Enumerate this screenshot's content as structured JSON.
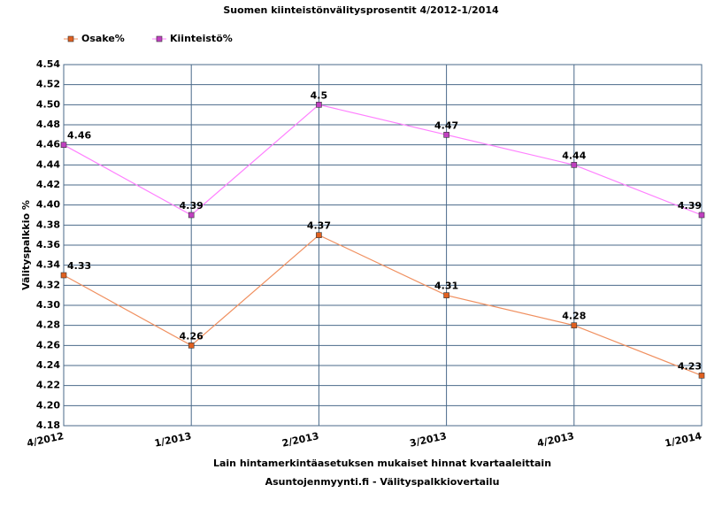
{
  "chart_data": {
    "type": "line",
    "title": "Suomen kiinteistönvälitysprosentit 4/2012-1/2014",
    "xlabel": "Lain hintamerkintäasetuksen mukaiset hinnat kvartaaleittain",
    "source": "Asuntojenmyynti.fi  -  Välityspalkkiovertailu",
    "ylabel": "Välityspalkkio %",
    "categories": [
      "4/2012",
      "1/2013",
      "2/2013",
      "3/2013",
      "4/2013",
      "1/2014"
    ],
    "series": [
      {
        "name": "Osake%",
        "color": "#f09060",
        "marker_color": "#e06020",
        "values": [
          4.33,
          4.26,
          4.37,
          4.31,
          4.28,
          4.23
        ]
      },
      {
        "name": "Kiinteistö%",
        "color": "#ff80ff",
        "marker_color": "#c040c0",
        "values": [
          4.46,
          4.39,
          4.5,
          4.47,
          4.44,
          4.39
        ]
      }
    ],
    "ylim": [
      4.18,
      4.54
    ],
    "yticks": [
      4.18,
      {
        "value": 4.2,
        "label": "4.20"
      },
      4.22,
      4.24,
      4.26,
      4.28,
      {
        "value": 4.3,
        "label": "4.30"
      },
      4.32,
      4.34,
      4.36,
      4.38,
      {
        "value": 4.4,
        "label": "4.40"
      },
      4.42,
      4.44,
      4.46,
      4.48,
      {
        "value": 4.5,
        "label": "4.50"
      },
      4.52,
      4.54
    ],
    "grid": true,
    "legend": "top-left"
  }
}
